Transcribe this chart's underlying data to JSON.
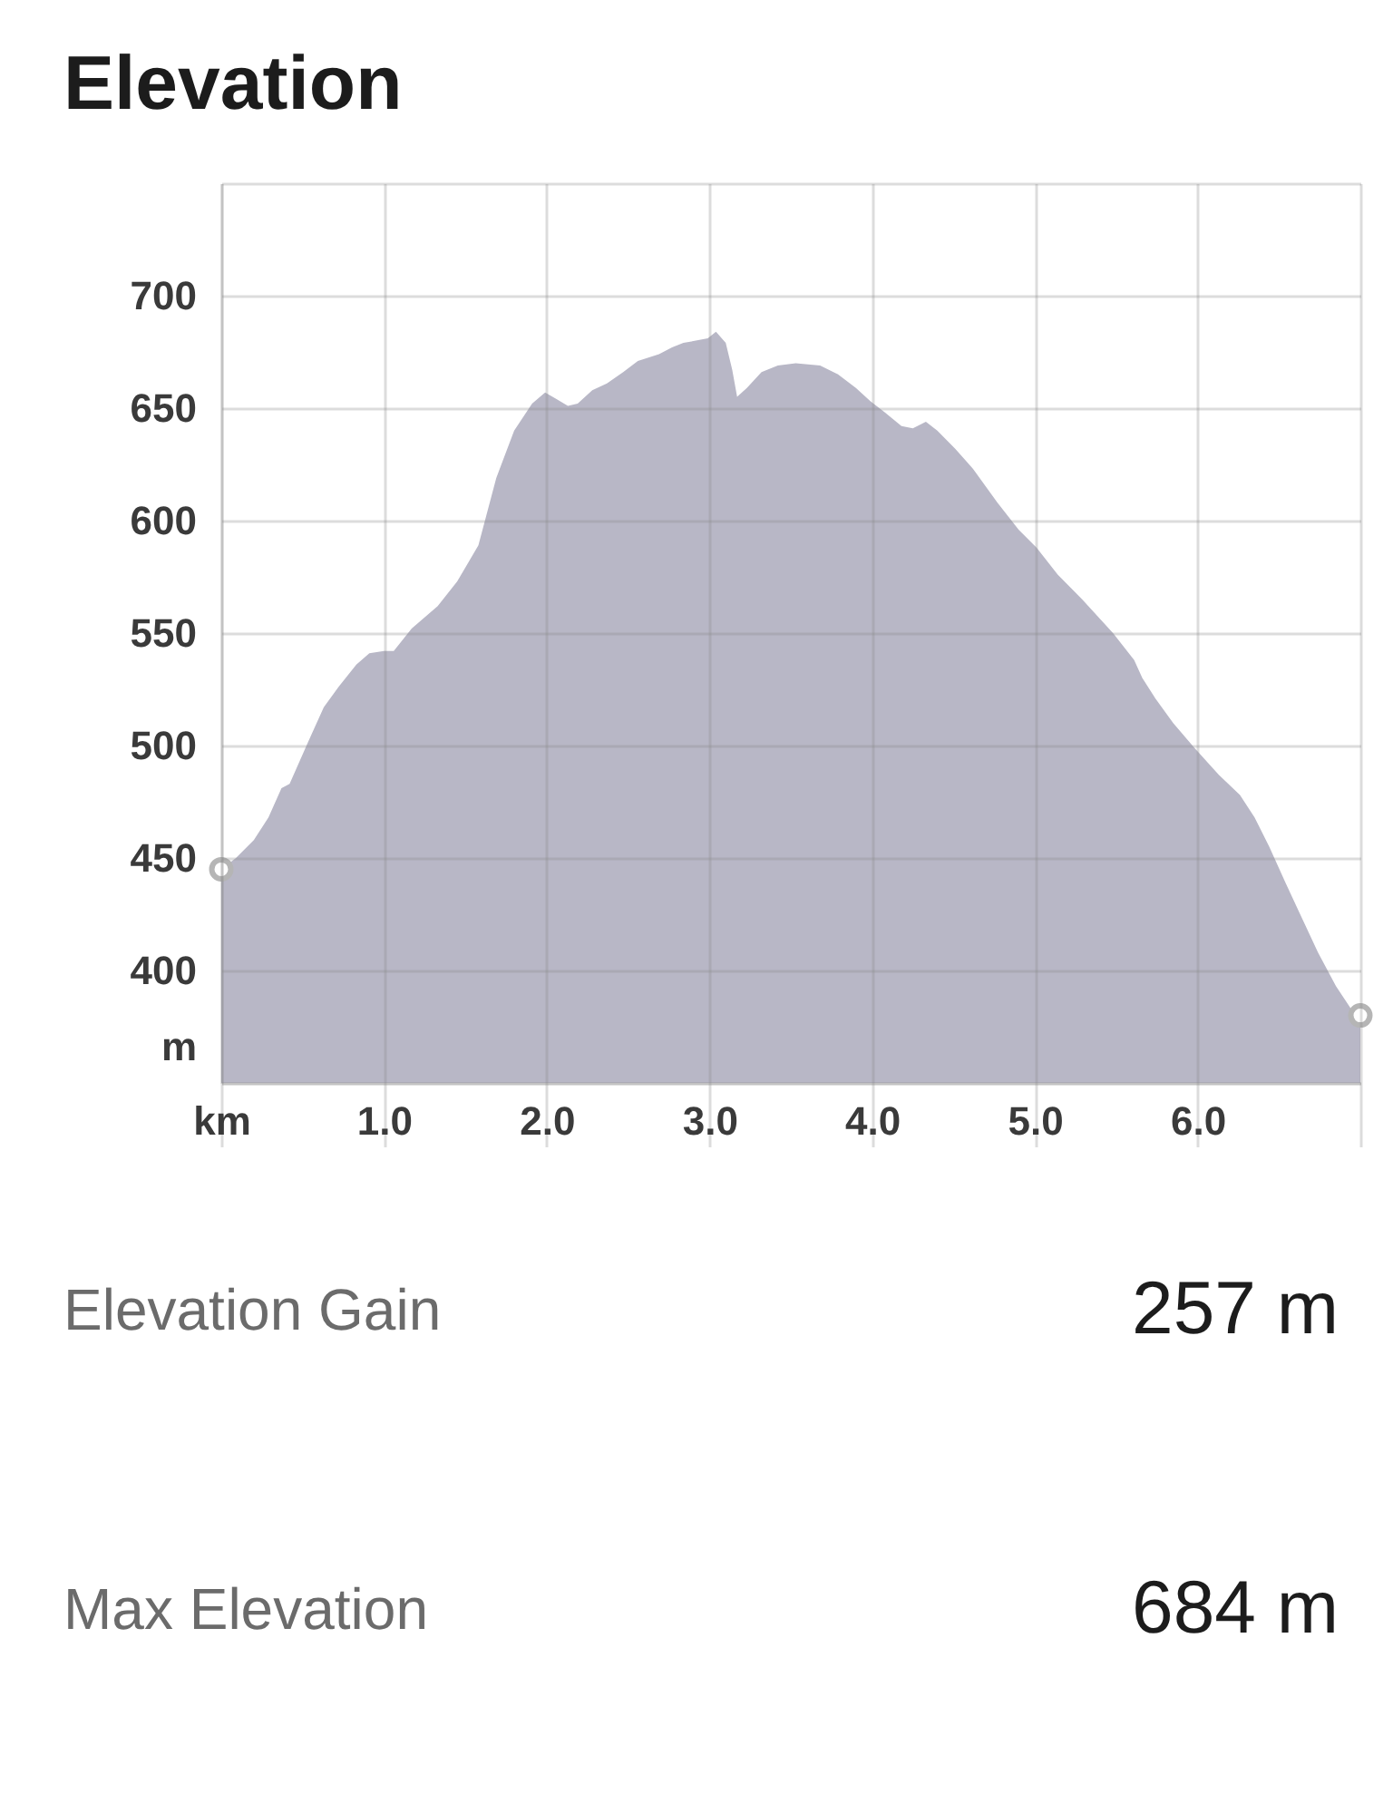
{
  "chart_data": {
    "type": "area",
    "title": "Elevation",
    "ylabel": "m",
    "x": [
      0,
      0.09,
      0.2,
      0.29,
      0.37,
      0.42,
      0.53,
      0.63,
      0.72,
      0.83,
      0.91,
      1.0,
      1.06,
      1.17,
      1.33,
      1.45,
      1.58,
      1.69,
      1.8,
      1.91,
      1.99,
      2.06,
      2.13,
      2.19,
      2.28,
      2.37,
      2.47,
      2.56,
      2.69,
      2.77,
      2.84,
      2.99,
      3.04,
      3.1,
      3.14,
      3.17,
      3.23,
      3.32,
      3.42,
      3.53,
      3.68,
      3.79,
      3.9,
      3.99,
      4.08,
      4.18,
      4.25,
      4.33,
      4.4,
      4.51,
      4.62,
      4.77,
      4.9,
      5.01,
      5.14,
      5.29,
      5.48,
      5.61,
      5.66,
      5.74,
      5.85,
      5.98,
      6.13,
      6.26,
      6.35,
      6.44,
      6.54,
      6.63,
      6.74,
      6.85,
      6.96,
      7.0
    ],
    "series": [
      {
        "color": "#b8b7c6",
        "values": [
          445,
          450,
          458,
          468,
          481,
          483,
          501,
          517,
          526,
          536,
          541,
          542,
          542,
          552,
          562,
          573,
          589,
          619,
          640,
          652,
          657,
          654,
          651,
          652,
          658,
          661,
          666,
          671,
          674,
          677,
          679,
          681,
          684,
          679,
          667,
          655,
          659,
          666,
          669,
          670,
          669,
          665,
          659,
          653,
          648,
          642,
          641,
          644,
          640,
          632,
          623,
          608,
          596,
          588,
          576,
          565,
          550,
          538,
          530,
          521,
          510,
          499,
          487,
          478,
          468,
          455,
          439,
          425,
          408,
          393,
          381,
          380
        ]
      },
      {
        "type": "scatter",
        "x": [
          0,
          7.0
        ],
        "values": [
          445,
          380
        ],
        "color": "#b5b5b5",
        "marker": "circle"
      }
    ],
    "xlim": [
      0,
      7
    ],
    "xticks": [
      {
        "value": 0,
        "label": "km"
      },
      {
        "value": 1,
        "label": "1.0"
      },
      {
        "value": 2,
        "label": "2.0"
      },
      {
        "value": 3,
        "label": "3.0"
      },
      {
        "value": 4,
        "label": "4.0"
      },
      {
        "value": 5,
        "label": "5.0"
      },
      {
        "value": 6,
        "label": "6.0"
      },
      {
        "value": 7,
        "label": null
      }
    ],
    "ylim": [
      350,
      750
    ],
    "yticks": [
      {
        "value": 350,
        "label": null
      },
      400,
      450,
      500,
      550,
      600,
      650,
      700,
      {
        "value": 750,
        "label": null
      }
    ],
    "grid": true,
    "annotations": [
      "Elevation Gain",
      "257 m",
      "Max Elevation",
      "684 m"
    ]
  }
}
